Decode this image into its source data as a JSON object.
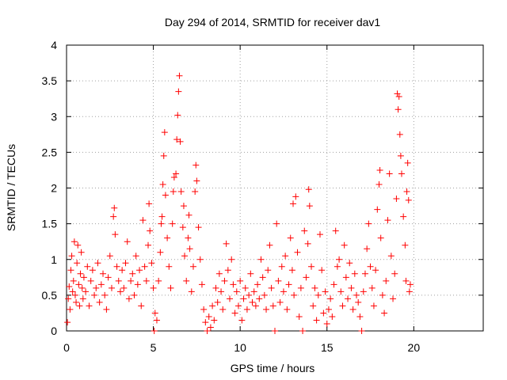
{
  "chart_data": {
    "type": "scatter",
    "title": "Day 294 of 2014, SRMTID for receiver dav1",
    "xlabel": "GPS time / hours",
    "ylabel": "SRMTID / TECUs",
    "xlim": [
      0,
      24
    ],
    "ylim": [
      0,
      4
    ],
    "xticks": [
      0,
      5,
      10,
      15,
      20
    ],
    "xtick_labels": [
      "0",
      "5",
      "10",
      "15",
      "20"
    ],
    "yticks": [
      0,
      0.5,
      1,
      1.5,
      2,
      2.5,
      3,
      3.5,
      4
    ],
    "ytick_labels": [
      "0",
      "0.5",
      "1",
      "1.5",
      "2",
      "2.5",
      "3",
      "3.5",
      "4"
    ],
    "grid": true,
    "marker": "plus",
    "color": "#ff0000",
    "series": [
      {
        "name": "SRMTID dav1",
        "points": [
          [
            0.05,
            0.12
          ],
          [
            0.1,
            0.45
          ],
          [
            0.15,
            0.62
          ],
          [
            0.2,
            0.3
          ],
          [
            0.25,
            0.85
          ],
          [
            0.3,
            1.05
          ],
          [
            0.35,
            0.55
          ],
          [
            0.4,
            0.7
          ],
          [
            0.45,
            1.25
          ],
          [
            0.5,
            0.5
          ],
          [
            0.55,
            0.4
          ],
          [
            0.6,
            0.95
          ],
          [
            0.65,
            1.2
          ],
          [
            0.7,
            0.65
          ],
          [
            0.75,
            0.35
          ],
          [
            0.8,
            0.8
          ],
          [
            0.85,
            1.1
          ],
          [
            0.9,
            0.6
          ],
          [
            0.95,
            0.45
          ],
          [
            1.0,
            0.75
          ],
          [
            1.1,
            0.55
          ],
          [
            1.2,
            0.9
          ],
          [
            1.3,
            0.35
          ],
          [
            1.4,
            0.7
          ],
          [
            1.5,
            0.85
          ],
          [
            1.6,
            0.5
          ],
          [
            1.7,
            0.6
          ],
          [
            1.8,
            0.95
          ],
          [
            1.9,
            0.4
          ],
          [
            2.0,
            0.65
          ],
          [
            2.1,
            0.8
          ],
          [
            2.2,
            0.5
          ],
          [
            2.3,
            0.3
          ],
          [
            2.4,
            0.75
          ],
          [
            2.5,
            1.05
          ],
          [
            2.6,
            0.6
          ],
          [
            2.7,
            1.6
          ],
          [
            2.75,
            1.72
          ],
          [
            2.8,
            1.35
          ],
          [
            2.9,
            0.9
          ],
          [
            3.0,
            0.7
          ],
          [
            3.1,
            0.55
          ],
          [
            3.2,
            0.85
          ],
          [
            3.3,
            0.6
          ],
          [
            3.4,
            0.95
          ],
          [
            3.5,
            1.25
          ],
          [
            3.6,
            0.45
          ],
          [
            3.7,
            0.7
          ],
          [
            3.8,
            0.8
          ],
          [
            3.9,
            0.5
          ],
          [
            4.0,
            1.05
          ],
          [
            4.1,
            0.65
          ],
          [
            4.2,
            0.85
          ],
          [
            4.3,
            0.35
          ],
          [
            4.4,
            1.55
          ],
          [
            4.5,
            0.9
          ],
          [
            4.6,
            0.7
          ],
          [
            4.7,
            1.2
          ],
          [
            4.75,
            1.78
          ],
          [
            4.8,
            1.4
          ],
          [
            4.9,
            0.95
          ],
          [
            5.0,
            0.6
          ],
          [
            5.05,
            0.0
          ],
          [
            5.1,
            0.25
          ],
          [
            5.2,
            0.15
          ],
          [
            5.3,
            0.7
          ],
          [
            5.4,
            1.1
          ],
          [
            5.45,
            1.5
          ],
          [
            5.5,
            1.6
          ],
          [
            5.55,
            2.05
          ],
          [
            5.6,
            2.45
          ],
          [
            5.65,
            2.78
          ],
          [
            5.7,
            1.9
          ],
          [
            5.8,
            1.3
          ],
          [
            5.9,
            0.9
          ],
          [
            6.0,
            0.6
          ],
          [
            6.1,
            1.5
          ],
          [
            6.15,
            1.95
          ],
          [
            6.2,
            2.15
          ],
          [
            6.3,
            2.2
          ],
          [
            6.35,
            2.68
          ],
          [
            6.4,
            3.02
          ],
          [
            6.45,
            3.35
          ],
          [
            6.5,
            3.57
          ],
          [
            6.55,
            2.65
          ],
          [
            6.6,
            1.95
          ],
          [
            6.7,
            1.45
          ],
          [
            6.75,
            1.75
          ],
          [
            6.8,
            1.05
          ],
          [
            6.9,
            0.7
          ],
          [
            7.0,
            1.3
          ],
          [
            7.05,
            1.62
          ],
          [
            7.1,
            1.15
          ],
          [
            7.2,
            0.55
          ],
          [
            7.3,
            0.9
          ],
          [
            7.4,
            1.95
          ],
          [
            7.45,
            2.32
          ],
          [
            7.5,
            2.1
          ],
          [
            7.6,
            1.45
          ],
          [
            7.7,
            1.0
          ],
          [
            7.8,
            0.65
          ],
          [
            7.9,
            0.3
          ],
          [
            8.0,
            0.12
          ],
          [
            8.1,
            0.0
          ],
          [
            8.2,
            0.2
          ],
          [
            8.3,
            0.05
          ],
          [
            8.4,
            0.35
          ],
          [
            8.5,
            0.15
          ],
          [
            8.6,
            0.6
          ],
          [
            8.7,
            0.4
          ],
          [
            8.8,
            0.8
          ],
          [
            8.9,
            0.55
          ],
          [
            9.0,
            0.3
          ],
          [
            9.1,
            0.7
          ],
          [
            9.2,
            1.22
          ],
          [
            9.3,
            0.85
          ],
          [
            9.4,
            0.45
          ],
          [
            9.5,
            1.0
          ],
          [
            9.6,
            0.65
          ],
          [
            9.7,
            0.25
          ],
          [
            9.8,
            0.55
          ],
          [
            9.9,
            0.35
          ],
          [
            10.0,
            0.7
          ],
          [
            10.1,
            0.15
          ],
          [
            10.2,
            0.45
          ],
          [
            10.3,
            0.6
          ],
          [
            10.4,
            0.3
          ],
          [
            10.5,
            0.5
          ],
          [
            10.6,
            0.8
          ],
          [
            10.7,
            0.4
          ],
          [
            10.8,
            0.55
          ],
          [
            10.9,
            0.35
          ],
          [
            11.0,
            0.65
          ],
          [
            11.1,
            0.45
          ],
          [
            11.2,
            1.0
          ],
          [
            11.3,
            0.75
          ],
          [
            11.4,
            0.5
          ],
          [
            11.5,
            0.3
          ],
          [
            11.6,
            0.85
          ],
          [
            11.7,
            1.2
          ],
          [
            11.8,
            0.6
          ],
          [
            11.9,
            0.35
          ],
          [
            12.0,
            0.0
          ],
          [
            12.1,
            1.5
          ],
          [
            12.2,
            0.7
          ],
          [
            12.3,
            0.4
          ],
          [
            12.4,
            0.9
          ],
          [
            12.5,
            0.55
          ],
          [
            12.6,
            1.05
          ],
          [
            12.7,
            0.3
          ],
          [
            12.8,
            0.65
          ],
          [
            12.9,
            1.3
          ],
          [
            13.0,
            0.85
          ],
          [
            13.05,
            1.78
          ],
          [
            13.1,
            0.5
          ],
          [
            13.2,
            1.88
          ],
          [
            13.3,
            1.1
          ],
          [
            13.4,
            0.2
          ],
          [
            13.5,
            0.6
          ],
          [
            13.6,
            0.0
          ],
          [
            13.7,
            1.4
          ],
          [
            13.8,
            0.75
          ],
          [
            13.9,
            1.22
          ],
          [
            13.95,
            1.98
          ],
          [
            14.0,
            1.75
          ],
          [
            14.1,
            0.9
          ],
          [
            14.2,
            0.35
          ],
          [
            14.3,
            0.6
          ],
          [
            14.4,
            0.15
          ],
          [
            14.5,
            0.5
          ],
          [
            14.6,
            1.35
          ],
          [
            14.7,
            0.85
          ],
          [
            14.8,
            0.25
          ],
          [
            14.9,
            0.55
          ],
          [
            15.0,
            0.1
          ],
          [
            15.1,
            0.3
          ],
          [
            15.2,
            0.45
          ],
          [
            15.3,
            0.2
          ],
          [
            15.4,
            0.65
          ],
          [
            15.5,
            1.4
          ],
          [
            15.6,
            0.9
          ],
          [
            15.7,
            1.0
          ],
          [
            15.8,
            0.55
          ],
          [
            15.9,
            0.35
          ],
          [
            16.0,
            1.2
          ],
          [
            16.1,
            0.75
          ],
          [
            16.2,
            0.45
          ],
          [
            16.3,
            0.95
          ],
          [
            16.4,
            0.6
          ],
          [
            16.5,
            0.3
          ],
          [
            16.6,
            0.8
          ],
          [
            16.7,
            0.5
          ],
          [
            16.8,
            0.4
          ],
          [
            16.9,
            0.2
          ],
          [
            17.0,
            0.0
          ],
          [
            17.1,
            0.55
          ],
          [
            17.2,
            0.8
          ],
          [
            17.3,
            1.15
          ],
          [
            17.4,
            1.5
          ],
          [
            17.5,
            0.9
          ],
          [
            17.6,
            0.6
          ],
          [
            17.7,
            0.35
          ],
          [
            17.8,
            0.85
          ],
          [
            17.9,
            1.7
          ],
          [
            18.0,
            2.05
          ],
          [
            18.05,
            2.25
          ],
          [
            18.1,
            1.3
          ],
          [
            18.2,
            0.5
          ],
          [
            18.3,
            0.25
          ],
          [
            18.4,
            0.7
          ],
          [
            18.5,
            1.55
          ],
          [
            18.6,
            2.2
          ],
          [
            18.7,
            1.05
          ],
          [
            18.8,
            0.45
          ],
          [
            18.9,
            0.8
          ],
          [
            19.0,
            1.85
          ],
          [
            19.05,
            3.32
          ],
          [
            19.1,
            3.1
          ],
          [
            19.15,
            3.28
          ],
          [
            19.2,
            2.75
          ],
          [
            19.25,
            2.45
          ],
          [
            19.3,
            2.2
          ],
          [
            19.4,
            1.6
          ],
          [
            19.5,
            1.2
          ],
          [
            19.55,
            0.7
          ],
          [
            19.6,
            1.95
          ],
          [
            19.65,
            2.35
          ],
          [
            19.7,
            1.83
          ],
          [
            19.75,
            0.55
          ],
          [
            19.8,
            0.65
          ]
        ]
      }
    ]
  }
}
